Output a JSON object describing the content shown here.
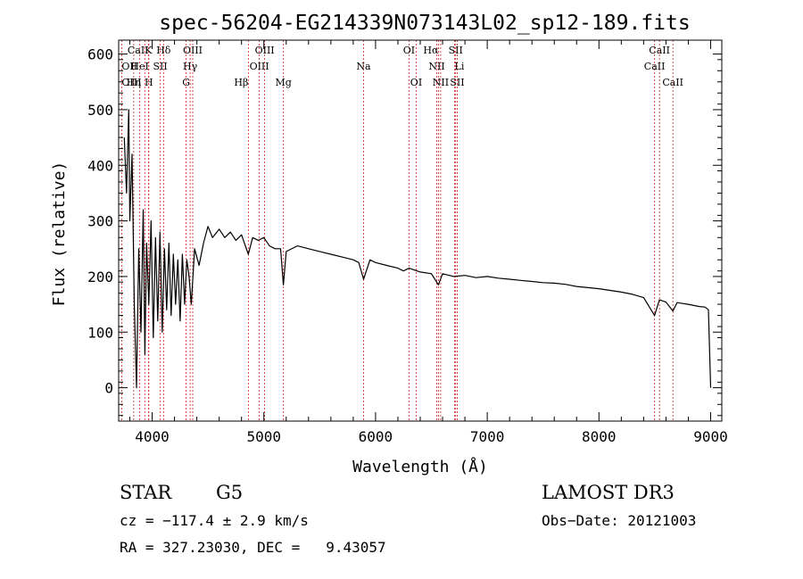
{
  "chart_data": {
    "type": "line",
    "title": "spec-56204-EG214339N073143L02_sp12-189.fits",
    "xlabel": "Wavelength (Å)",
    "ylabel": "Flux (relative)",
    "xlim": [
      3700,
      9100
    ],
    "ylim": [
      -60,
      625
    ],
    "xticks": [
      4000,
      5000,
      6000,
      7000,
      8000,
      9000
    ],
    "yticks": [
      0,
      100,
      200,
      300,
      400,
      500,
      600
    ],
    "grid": false,
    "series": [
      {
        "name": "spectrum",
        "x": [
          3750,
          3770,
          3790,
          3800,
          3820,
          3840,
          3860,
          3880,
          3900,
          3920,
          3935,
          3950,
          3970,
          3990,
          4010,
          4030,
          4050,
          4070,
          4090,
          4110,
          4130,
          4150,
          4170,
          4190,
          4210,
          4230,
          4250,
          4270,
          4290,
          4310,
          4330,
          4350,
          4380,
          4420,
          4460,
          4500,
          4540,
          4600,
          4650,
          4700,
          4750,
          4800,
          4861,
          4900,
          4950,
          5000,
          5050,
          5100,
          5150,
          5175,
          5200,
          5300,
          5400,
          5500,
          5600,
          5700,
          5800,
          5850,
          5893,
          5950,
          6000,
          6100,
          6200,
          6250,
          6300,
          6400,
          6500,
          6563,
          6600,
          6700,
          6800,
          6900,
          7000,
          7100,
          7200,
          7300,
          7400,
          7500,
          7600,
          7700,
          7800,
          7900,
          8000,
          8100,
          8200,
          8300,
          8400,
          8498,
          8542,
          8600,
          8662,
          8700,
          8800,
          8900,
          8950,
          8980,
          9000
        ],
        "values": [
          450,
          350,
          500,
          300,
          420,
          150,
          0,
          250,
          100,
          320,
          60,
          260,
          150,
          300,
          90,
          270,
          120,
          280,
          100,
          250,
          140,
          260,
          130,
          240,
          150,
          230,
          120,
          240,
          150,
          230,
          200,
          150,
          250,
          220,
          260,
          290,
          270,
          285,
          270,
          280,
          265,
          275,
          240,
          270,
          265,
          270,
          255,
          250,
          250,
          185,
          245,
          255,
          250,
          245,
          240,
          235,
          230,
          225,
          195,
          230,
          225,
          220,
          215,
          210,
          215,
          208,
          205,
          185,
          205,
          200,
          202,
          198,
          200,
          197,
          195,
          193,
          191,
          189,
          188,
          186,
          182,
          180,
          178,
          175,
          172,
          168,
          162,
          130,
          158,
          154,
          138,
          153,
          150,
          146,
          145,
          140,
          0
        ]
      }
    ],
    "line_markers": [
      {
        "label": "CaII",
        "x": 3968,
        "row": 0,
        "align": "right"
      },
      {
        "label": "K",
        "x": 3934,
        "row": 0,
        "align": "left"
      },
      {
        "label": "Hδ",
        "x": 4102,
        "row": 0,
        "align": "center"
      },
      {
        "label": "OIII",
        "x": 4363,
        "row": 0,
        "align": "center"
      },
      {
        "label": "OIII",
        "x": 5007,
        "row": 0,
        "align": "center"
      },
      {
        "label": "OI",
        "x": 6300,
        "row": 0,
        "align": "center"
      },
      {
        "label": "Hα",
        "x": 6563,
        "row": 0,
        "align": "right"
      },
      {
        "label": "SII",
        "x": 6717,
        "row": 0,
        "align": "center"
      },
      {
        "label": "CaII",
        "x": 8542,
        "row": 0,
        "align": "center"
      },
      {
        "label": "OII",
        "x": 3727,
        "row": 1,
        "align": "left"
      },
      {
        "label": "HeI",
        "x": 3889,
        "row": 1,
        "align": "center"
      },
      {
        "label": "SII",
        "x": 4072,
        "row": 1,
        "align": "center"
      },
      {
        "label": "Hγ",
        "x": 4340,
        "row": 1,
        "align": "center"
      },
      {
        "label": "OIII",
        "x": 4959,
        "row": 1,
        "align": "center"
      },
      {
        "label": "Na",
        "x": 5893,
        "row": 1,
        "align": "center"
      },
      {
        "label": "NII",
        "x": 6548,
        "row": 1,
        "align": "center"
      },
      {
        "label": "Li",
        "x": 6708,
        "row": 1,
        "align": "left"
      },
      {
        "label": "CaII",
        "x": 8498,
        "row": 1,
        "align": "center"
      },
      {
        "label": "OIII",
        "x": 3727,
        "row": 2,
        "align": "left"
      },
      {
        "label": "Hη",
        "x": 3835,
        "row": 2,
        "align": "center"
      },
      {
        "label": "H",
        "x": 3970,
        "row": 2,
        "align": "center"
      },
      {
        "label": "G",
        "x": 4304,
        "row": 2,
        "align": "center"
      },
      {
        "label": "Hβ",
        "x": 4861,
        "row": 2,
        "align": "right"
      },
      {
        "label": "Mg",
        "x": 5175,
        "row": 2,
        "align": "center"
      },
      {
        "label": "OI",
        "x": 6364,
        "row": 2,
        "align": "center"
      },
      {
        "label": "NII",
        "x": 6583,
        "row": 2,
        "align": "center"
      },
      {
        "label": "SII",
        "x": 6731,
        "row": 2,
        "align": "center"
      },
      {
        "label": "CaII",
        "x": 8662,
        "row": 2,
        "align": "center"
      }
    ]
  },
  "info": {
    "object_class": "STAR",
    "subclass": "G5",
    "survey": "LAMOST DR3",
    "redshift": "cz = −117.4 ± 2.9 km/s",
    "obs_date": "Obs−Date: 20121003",
    "coordinates": "RA = 327.23030, DEC =   9.43057"
  },
  "colors": {
    "line": "#000000",
    "marker": "#cc2222",
    "axis": "#000000"
  }
}
